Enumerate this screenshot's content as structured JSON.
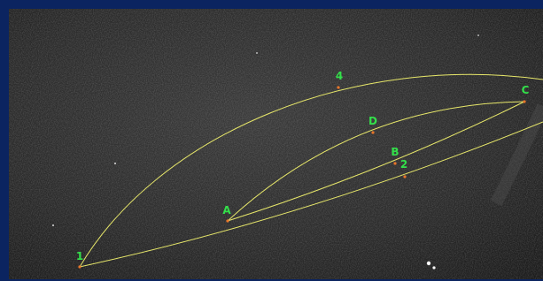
{
  "points": [
    "1",
    "2",
    "4",
    "A",
    "B",
    "C",
    "D"
  ]
}
